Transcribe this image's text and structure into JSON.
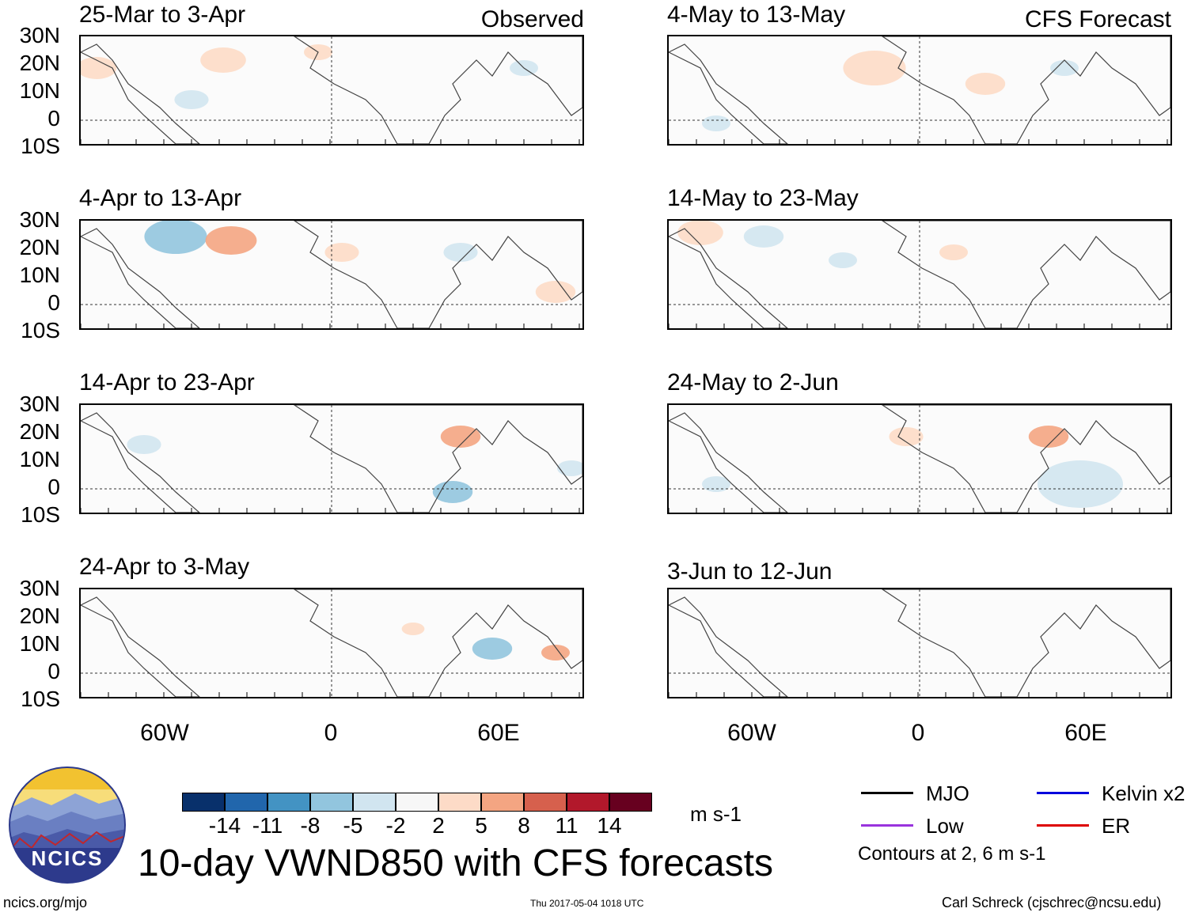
{
  "panels_left": [
    {
      "date_range": "25-Mar to 3-Apr",
      "label": "Observed"
    },
    {
      "date_range": "4-Apr to 13-Apr",
      "label": ""
    },
    {
      "date_range": "14-Apr to 23-Apr",
      "label": ""
    },
    {
      "date_range": "24-Apr to 3-May",
      "label": ""
    }
  ],
  "panels_right": [
    {
      "date_range": "4-May to 13-May",
      "label": "CFS Forecast"
    },
    {
      "date_range": "14-May to 23-May",
      "label": ""
    },
    {
      "date_range": "24-May to 2-Jun",
      "label": ""
    },
    {
      "date_range": "3-Jun to 12-Jun",
      "label": ""
    }
  ],
  "lat_labels": [
    "30N",
    "20N",
    "10N",
    "0",
    "10S"
  ],
  "lon_labels": [
    "60W",
    "0",
    "60E"
  ],
  "colorbar": {
    "ticks": [
      "-14",
      "-11",
      "-8",
      "-5",
      "-2",
      "2",
      "5",
      "8",
      "11",
      "14"
    ],
    "colors": [
      "#08306b",
      "#2166ac",
      "#4393c3",
      "#92c5de",
      "#d1e5f0",
      "#f7f7f7",
      "#fddbc7",
      "#f4a582",
      "#d6604d",
      "#b2182b",
      "#67001f"
    ],
    "units": "m s-1"
  },
  "title": "10-day VWND850 with CFS forecasts",
  "legend": {
    "mjo": {
      "label": "MJO",
      "color": "#000000"
    },
    "kelvin": {
      "label": "Kelvin x2",
      "color": "#0000dd"
    },
    "low": {
      "label": "Low",
      "color": "#9933dd"
    },
    "er": {
      "label": "ER",
      "color": "#dd0000"
    },
    "contours_note": "Contours at 2, 6 m s-1"
  },
  "footer": {
    "url": "ncics.org/mjo",
    "timestamp": "Thu 2017-05-04 1018 UTC",
    "credit": "Carl Schreck (cjschrec@ncsu.edu)"
  },
  "logo": {
    "text": "NCICS"
  }
}
